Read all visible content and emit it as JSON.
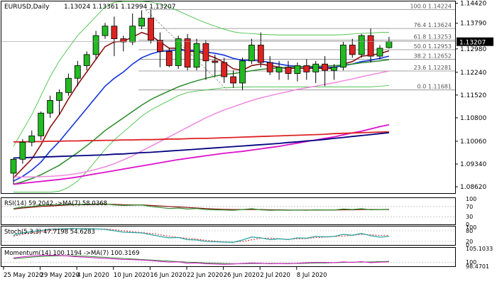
{
  "header": {
    "symbol": "EURUSD,Daily",
    "ohlc": "1.13024 1.13361 1.12994 1.13207"
  },
  "price_axis": {
    "ticks": [
      "1.14420",
      "1.13790",
      "1.12980",
      "1.12240",
      "1.11520",
      "1.10800",
      "1.10060",
      "1.09340",
      "1.08620"
    ],
    "current_price": "1.13207"
  },
  "fibo": [
    {
      "label": "100.0 1.14224"
    },
    {
      "label": "76.4 1.13624"
    },
    {
      "label": "61.8 1.13253"
    },
    {
      "label": "50.0 1.12953"
    },
    {
      "label": "38.2 1.12652"
    },
    {
      "label": "23.6 1.12281"
    },
    {
      "label": "0.0 1.11681"
    }
  ],
  "indicators": {
    "rsi": {
      "label": "RSI(14) 59.2042 ->MA(7) 58.0368",
      "ticks": [
        "100",
        "70",
        "30",
        "0"
      ]
    },
    "stoch": {
      "label": "Stoch(5,3,3) 47.7198 54.6283",
      "ticks": [
        "100",
        "80",
        "20",
        "0"
      ]
    },
    "momentum": {
      "label": "Momentum(14) 100.1194 ->MA(7) 100.3169",
      "ticks": [
        "105.1033",
        "100",
        "98.4701"
      ]
    }
  },
  "time_axis": [
    "25 May 2020",
    "29 May 2020",
    "4 Jun 2020",
    "10 Jun 2020",
    "16 Jun 2020",
    "22 Jun 2020",
    "26 Jun 2020",
    "2 Jul 2020",
    "8 Jul 2020"
  ],
  "colors": {
    "bull": "#22bb22",
    "bear": "#dd2222",
    "ma_dark_red": "#8b1010",
    "ma_blue": "#1133dd",
    "ma_green": "#2a8a2a",
    "ma_pink": "#ee88dd",
    "ma_magenta": "#dd11cc",
    "ma_red": "#dd2222",
    "ma_navy": "#000080",
    "bollinger": "#33bb33",
    "fibo": "#888888"
  },
  "chart_data": {
    "type": "candlestick",
    "title": "EURUSD,Daily",
    "ylim": [
      1.0842,
      1.1448
    ],
    "candles": [
      {
        "o": 1.0905,
        "h": 1.0953,
        "l": 1.087,
        "c": 1.0949
      },
      {
        "o": 1.0949,
        "h": 1.1013,
        "l": 1.0935,
        "c": 1.1003
      },
      {
        "o": 1.1003,
        "h": 1.104,
        "l": 1.099,
        "c": 1.1023
      },
      {
        "o": 1.1023,
        "h": 1.11,
        "l": 1.101,
        "c": 1.1095
      },
      {
        "o": 1.1095,
        "h": 1.115,
        "l": 1.108,
        "c": 1.1135
      },
      {
        "o": 1.1135,
        "h": 1.117,
        "l": 1.109,
        "c": 1.116
      },
      {
        "o": 1.116,
        "h": 1.122,
        "l": 1.115,
        "c": 1.1205
      },
      {
        "o": 1.1205,
        "h": 1.126,
        "l": 1.118,
        "c": 1.1245
      },
      {
        "o": 1.1245,
        "h": 1.129,
        "l": 1.123,
        "c": 1.128
      },
      {
        "o": 1.128,
        "h": 1.1355,
        "l": 1.1265,
        "c": 1.134
      },
      {
        "o": 1.134,
        "h": 1.138,
        "l": 1.133,
        "c": 1.137
      },
      {
        "o": 1.137,
        "h": 1.14,
        "l": 1.1275,
        "c": 1.133
      },
      {
        "o": 1.133,
        "h": 1.134,
        "l": 1.129,
        "c": 1.132
      },
      {
        "o": 1.132,
        "h": 1.141,
        "l": 1.131,
        "c": 1.137
      },
      {
        "o": 1.137,
        "h": 1.142,
        "l": 1.136,
        "c": 1.1395
      },
      {
        "o": 1.1395,
        "h": 1.1422,
        "l": 1.1315,
        "c": 1.1325
      },
      {
        "o": 1.1325,
        "h": 1.135,
        "l": 1.124,
        "c": 1.129
      },
      {
        "o": 1.129,
        "h": 1.13,
        "l": 1.124,
        "c": 1.1245
      },
      {
        "o": 1.1245,
        "h": 1.134,
        "l": 1.1235,
        "c": 1.133
      },
      {
        "o": 1.133,
        "h": 1.1345,
        "l": 1.123,
        "c": 1.124
      },
      {
        "o": 1.124,
        "h": 1.133,
        "l": 1.123,
        "c": 1.1315
      },
      {
        "o": 1.1315,
        "h": 1.1325,
        "l": 1.12,
        "c": 1.126
      },
      {
        "o": 1.126,
        "h": 1.128,
        "l": 1.121,
        "c": 1.1255
      },
      {
        "o": 1.1255,
        "h": 1.127,
        "l": 1.119,
        "c": 1.121
      },
      {
        "o": 1.121,
        "h": 1.123,
        "l": 1.1175,
        "c": 1.119
      },
      {
        "o": 1.119,
        "h": 1.127,
        "l": 1.1168,
        "c": 1.126
      },
      {
        "o": 1.126,
        "h": 1.133,
        "l": 1.125,
        "c": 1.131
      },
      {
        "o": 1.131,
        "h": 1.135,
        "l": 1.124,
        "c": 1.1255
      },
      {
        "o": 1.1255,
        "h": 1.1275,
        "l": 1.1215,
        "c": 1.1225
      },
      {
        "o": 1.1225,
        "h": 1.126,
        "l": 1.12,
        "c": 1.124
      },
      {
        "o": 1.124,
        "h": 1.126,
        "l": 1.12,
        "c": 1.122
      },
      {
        "o": 1.122,
        "h": 1.1255,
        "l": 1.1195,
        "c": 1.1245
      },
      {
        "o": 1.1245,
        "h": 1.1265,
        "l": 1.12,
        "c": 1.1225
      },
      {
        "o": 1.1225,
        "h": 1.126,
        "l": 1.119,
        "c": 1.125
      },
      {
        "o": 1.125,
        "h": 1.1275,
        "l": 1.118,
        "c": 1.123
      },
      {
        "o": 1.123,
        "h": 1.125,
        "l": 1.12,
        "c": 1.124
      },
      {
        "o": 1.124,
        "h": 1.132,
        "l": 1.123,
        "c": 1.131
      },
      {
        "o": 1.131,
        "h": 1.133,
        "l": 1.127,
        "c": 1.128
      },
      {
        "o": 1.128,
        "h": 1.1345,
        "l": 1.127,
        "c": 1.134
      },
      {
        "o": 1.134,
        "h": 1.1362,
        "l": 1.1255,
        "c": 1.1275
      },
      {
        "o": 1.1275,
        "h": 1.131,
        "l": 1.1265,
        "c": 1.13
      },
      {
        "o": 1.1302,
        "h": 1.1336,
        "l": 1.1299,
        "c": 1.1321
      }
    ],
    "moving_averages": [
      {
        "name": "MA fast",
        "color": "#8b1010",
        "values": [
          1.089,
          1.092,
          1.095,
          1.0995,
          1.105,
          1.109,
          1.114,
          1.1185,
          1.1225,
          1.1265,
          1.1305,
          1.132,
          1.1322,
          1.1335,
          1.135,
          1.134,
          1.132,
          1.13,
          1.13,
          1.129,
          1.129,
          1.128,
          1.127,
          1.1255,
          1.1235,
          1.123,
          1.1245,
          1.125,
          1.1245,
          1.124,
          1.1235,
          1.1238,
          1.1235,
          1.1238,
          1.1235,
          1.1237,
          1.125,
          1.1258,
          1.1275,
          1.1278,
          1.1283,
          1.1292
        ]
      },
      {
        "name": "MA blue",
        "color": "#1133dd",
        "values": [
          1.088,
          1.0895,
          1.0915,
          1.094,
          1.0975,
          1.1005,
          1.104,
          1.1075,
          1.111,
          1.1145,
          1.118,
          1.1205,
          1.1225,
          1.125,
          1.127,
          1.1282,
          1.129,
          1.1292,
          1.1295,
          1.1293,
          1.1292,
          1.1288,
          1.1284,
          1.1278,
          1.1268,
          1.1262,
          1.1262,
          1.126,
          1.1255,
          1.125,
          1.1245,
          1.1243,
          1.124,
          1.124,
          1.124,
          1.124,
          1.1245,
          1.125,
          1.1258,
          1.1262,
          1.1268,
          1.1275
        ]
      },
      {
        "name": "MA green",
        "color": "#2a8a2a",
        "values": [
          1.087,
          1.0878,
          1.0888,
          1.09,
          1.0915,
          1.093,
          1.095,
          1.097,
          1.0992,
          1.1015,
          1.104,
          1.106,
          1.108,
          1.11,
          1.112,
          1.1138,
          1.1152,
          1.1165,
          1.1178,
          1.1188,
          1.1197,
          1.1205,
          1.1212,
          1.1217,
          1.122,
          1.1224,
          1.1229,
          1.1233,
          1.1236,
          1.1238,
          1.124,
          1.1241,
          1.1242,
          1.1243,
          1.1244,
          1.1245,
          1.1247,
          1.125,
          1.1254,
          1.1257,
          1.126,
          1.1264
        ]
      },
      {
        "name": "MA pink",
        "color": "#ee88dd",
        "values": [
          1.0893,
          1.0893,
          1.0893,
          1.0894,
          1.0895,
          1.0897,
          1.09,
          1.0904,
          1.091,
          1.0917,
          1.0925,
          1.0935,
          1.0947,
          1.096,
          1.0975,
          1.099,
          1.1005,
          1.102,
          1.1035,
          1.105,
          1.1065,
          1.108,
          1.1093,
          1.1105,
          1.1115,
          1.1125,
          1.1135,
          1.1143,
          1.115,
          1.1157,
          1.1163,
          1.117,
          1.1175,
          1.118,
          1.1186,
          1.1191,
          1.1197,
          1.1203,
          1.121,
          1.1216,
          1.1222,
          1.1228
        ]
      },
      {
        "name": "MA magenta",
        "color": "#dd11cc",
        "values": [
          1.087,
          1.0873,
          1.0876,
          1.0879,
          1.0882,
          1.0885,
          1.0889,
          1.0893,
          1.0898,
          1.0903,
          1.0908,
          1.0913,
          1.0918,
          1.0923,
          1.0928,
          1.0933,
          1.0938,
          1.0943,
          1.0948,
          1.0952,
          1.0956,
          1.096,
          1.0964,
          1.0968,
          1.0971,
          1.0974,
          1.0978,
          1.0982,
          1.0986,
          1.099,
          1.0995,
          1.1,
          1.1005,
          1.101,
          1.1015,
          1.102,
          1.1026,
          1.1032,
          1.1038,
          1.1045,
          1.1052,
          1.1058
        ]
      },
      {
        "name": "MA red",
        "color": "#dd2222",
        "values": [
          1.1004,
          1.1004,
          1.1005,
          1.1005,
          1.1006,
          1.1006,
          1.1007,
          1.1007,
          1.1008,
          1.1008,
          1.1009,
          1.1009,
          1.101,
          1.101,
          1.1011,
          1.1011,
          1.1012,
          1.1013,
          1.1013,
          1.1014,
          1.1015,
          1.1015,
          1.1016,
          1.1017,
          1.1018,
          1.1019,
          1.102,
          1.1021,
          1.1022,
          1.1023,
          1.1024,
          1.1025,
          1.1026,
          1.1027,
          1.1028,
          1.103,
          1.1031,
          1.1032,
          1.1033,
          1.1034,
          1.1035,
          1.1036
        ]
      },
      {
        "name": "MA navy",
        "color": "#000080",
        "values": [
          1.0953,
          1.0954,
          1.0955,
          1.0956,
          1.0957,
          1.0958,
          1.0959,
          1.096,
          1.0961,
          1.0962,
          1.0963,
          1.0965,
          1.0966,
          1.0968,
          1.097,
          1.0971,
          1.0973,
          1.0975,
          1.0977,
          1.0979,
          1.0981,
          1.0983,
          1.0985,
          1.0987,
          1.0989,
          1.0991,
          1.0993,
          1.0995,
          1.0997,
          1.0999,
          1.1002,
          1.1004,
          1.1007,
          1.1009,
          1.1012,
          1.1015,
          1.1018,
          1.1021,
          1.1024,
          1.1027,
          1.103,
          1.1033
        ]
      }
    ],
    "bollinger_upper": [
      1.099,
      1.104,
      1.109,
      1.115,
      1.121,
      1.126,
      1.13,
      1.134,
      1.137,
      1.14,
      1.143,
      1.1445,
      1.1448,
      1.1448,
      1.1448,
      1.1446,
      1.144,
      1.143,
      1.1418,
      1.1405,
      1.1392,
      1.138,
      1.137,
      1.136,
      1.1352,
      1.1348,
      1.1346,
      1.1344,
      1.1343,
      1.1342,
      1.1342,
      1.1342,
      1.1342,
      1.1342,
      1.1342,
      1.1342,
      1.1343,
      1.1345,
      1.1347,
      1.1348,
      1.135,
      1.135
    ],
    "bollinger_lower": [
      1.0845,
      1.0845,
      1.0845,
      1.0845,
      1.0845,
      1.0848,
      1.086,
      1.088,
      1.091,
      1.0945,
      1.098,
      1.101,
      1.1035,
      1.106,
      1.1085,
      1.1105,
      1.112,
      1.1135,
      1.115,
      1.116,
      1.1165,
      1.1168,
      1.1172,
      1.1175,
      1.1176,
      1.1177,
      1.1178,
      1.1178,
      1.1178,
      1.1178,
      1.1178,
      1.1178,
      1.1178,
      1.1178,
      1.1178,
      1.1178,
      1.1178,
      1.1178,
      1.1178,
      1.1178,
      1.118,
      1.1182
    ],
    "rsi": {
      "ylim": [
        0,
        100
      ],
      "values": [
        62,
        68,
        70,
        74,
        76,
        77,
        78,
        78,
        79,
        80,
        80,
        76,
        74,
        75,
        76,
        70,
        66,
        62,
        64,
        60,
        62,
        58,
        57,
        56,
        55,
        58,
        61,
        57,
        55,
        56,
        55,
        56,
        55,
        57,
        56,
        56,
        60,
        58,
        61,
        57,
        58,
        59
      ],
      "ma": [
        60,
        64,
        67,
        70,
        72,
        74,
        76,
        77,
        77,
        78,
        79,
        78,
        77,
        76,
        76,
        74,
        72,
        70,
        68,
        66,
        64,
        62,
        60,
        59,
        58,
        58,
        58,
        58,
        57,
        57,
        56,
        56,
        56,
        56,
        56,
        56,
        57,
        57,
        58,
        58,
        58,
        58
      ]
    },
    "stoch": {
      "ylim": [
        0,
        100
      ],
      "main": [
        55,
        68,
        75,
        82,
        88,
        90,
        92,
        92,
        91,
        90,
        88,
        80,
        72,
        70,
        68,
        58,
        48,
        40,
        42,
        30,
        28,
        20,
        18,
        16,
        15,
        28,
        45,
        40,
        30,
        35,
        30,
        40,
        38,
        48,
        46,
        48,
        60,
        55,
        65,
        52,
        44,
        48
      ],
      "signal": [
        50,
        60,
        68,
        75,
        82,
        86,
        89,
        91,
        91,
        91,
        90,
        86,
        80,
        74,
        70,
        65,
        58,
        49,
        43,
        37,
        33,
        26,
        22,
        18,
        16,
        20,
        29,
        38,
        38,
        35,
        32,
        35,
        36,
        42,
        44,
        47,
        51,
        54,
        60,
        57,
        54,
        55
      ]
    },
    "momentum": {
      "ylim": [
        98.47,
        105.1
      ],
      "values": [
        101.6,
        102.0,
        102.3,
        102.5,
        102.6,
        102.5,
        102.3,
        102.0,
        101.8,
        101.6,
        101.4,
        101.2,
        101.0,
        100.9,
        100.8,
        100.6,
        100.3,
        100.0,
        100.1,
        99.6,
        99.7,
        99.4,
        99.3,
        99.2,
        99.3,
        99.5,
        99.7,
        99.6,
        99.4,
        99.5,
        99.4,
        99.6,
        99.8,
        99.9,
        99.9,
        99.8,
        100.1,
        99.9,
        100.2,
        99.8,
        100.0,
        100.1
      ],
      "ma": [
        101.3,
        101.6,
        101.9,
        102.1,
        102.3,
        102.4,
        102.4,
        102.3,
        102.2,
        102.0,
        101.8,
        101.6,
        101.4,
        101.2,
        101.0,
        100.8,
        100.6,
        100.4,
        100.2,
        100.0,
        99.9,
        99.7,
        99.6,
        99.5,
        99.4,
        99.4,
        99.5,
        99.5,
        99.5,
        99.5,
        99.5,
        99.5,
        99.6,
        99.7,
        99.7,
        99.8,
        99.9,
        100.0,
        100.0,
        100.1,
        100.2,
        100.3
      ]
    }
  }
}
